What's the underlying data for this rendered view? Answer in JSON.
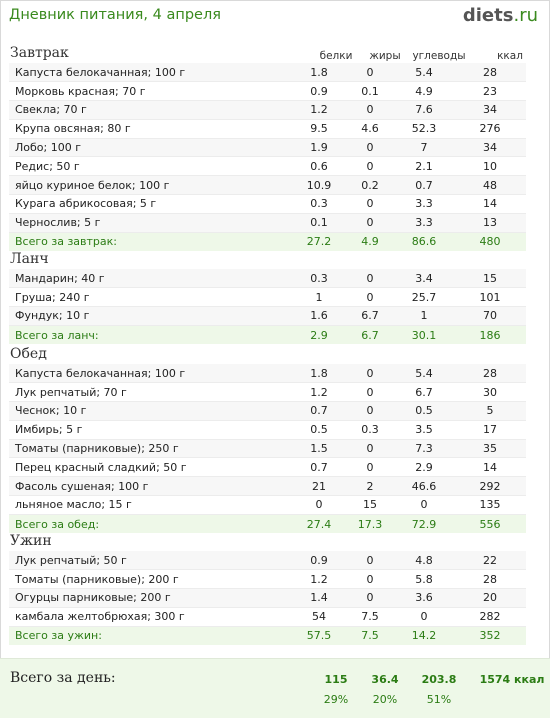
{
  "title": "Дневник питания, 4 апреля",
  "logo": {
    "part1": "diets",
    "part2": ".ru"
  },
  "columns": [
    "белки",
    "жиры",
    "углеводы",
    "ккал"
  ],
  "meals": [
    {
      "name": "Завтрак",
      "items": [
        {
          "name": "Капуста белокачанная; 100 г",
          "protein": "1.8",
          "fat": "0",
          "carbs": "5.4",
          "kcal": "28"
        },
        {
          "name": "Морковь красная; 70 г",
          "protein": "0.9",
          "fat": "0.1",
          "carbs": "4.9",
          "kcal": "23"
        },
        {
          "name": "Свекла; 70 г",
          "protein": "1.2",
          "fat": "0",
          "carbs": "7.6",
          "kcal": "34"
        },
        {
          "name": "Крупа овсяная; 80 г",
          "protein": "9.5",
          "fat": "4.6",
          "carbs": "52.3",
          "kcal": "276"
        },
        {
          "name": "Лобо; 100 г",
          "protein": "1.9",
          "fat": "0",
          "carbs": "7",
          "kcal": "34"
        },
        {
          "name": "Редис; 50 г",
          "protein": "0.6",
          "fat": "0",
          "carbs": "2.1",
          "kcal": "10"
        },
        {
          "name": "яйцо куриное белок; 100 г",
          "protein": "10.9",
          "fat": "0.2",
          "carbs": "0.7",
          "kcal": "48"
        },
        {
          "name": "Курага абрикосовая; 5 г",
          "protein": "0.3",
          "fat": "0",
          "carbs": "3.3",
          "kcal": "14"
        },
        {
          "name": "Чернослив; 5 г",
          "protein": "0.1",
          "fat": "0",
          "carbs": "3.3",
          "kcal": "13"
        }
      ],
      "total": {
        "name": "Всего за завтрак:",
        "protein": "27.2",
        "fat": "4.9",
        "carbs": "86.6",
        "kcal": "480"
      }
    },
    {
      "name": "Ланч",
      "items": [
        {
          "name": "Мандарин; 40 г",
          "protein": "0.3",
          "fat": "0",
          "carbs": "3.4",
          "kcal": "15"
        },
        {
          "name": "Груша; 240 г",
          "protein": "1",
          "fat": "0",
          "carbs": "25.7",
          "kcal": "101"
        },
        {
          "name": "Фундук; 10 г",
          "protein": "1.6",
          "fat": "6.7",
          "carbs": "1",
          "kcal": "70"
        }
      ],
      "total": {
        "name": "Всего за ланч:",
        "protein": "2.9",
        "fat": "6.7",
        "carbs": "30.1",
        "kcal": "186"
      }
    },
    {
      "name": "Обед",
      "items": [
        {
          "name": "Капуста белокачанная; 100 г",
          "protein": "1.8",
          "fat": "0",
          "carbs": "5.4",
          "kcal": "28"
        },
        {
          "name": "Лук репчатый; 70 г",
          "protein": "1.2",
          "fat": "0",
          "carbs": "6.7",
          "kcal": "30"
        },
        {
          "name": "Чеснок; 10 г",
          "protein": "0.7",
          "fat": "0",
          "carbs": "0.5",
          "kcal": "5"
        },
        {
          "name": "Имбирь; 5 г",
          "protein": "0.5",
          "fat": "0.3",
          "carbs": "3.5",
          "kcal": "17"
        },
        {
          "name": "Томаты (парниковые); 250 г",
          "protein": "1.5",
          "fat": "0",
          "carbs": "7.3",
          "kcal": "35"
        },
        {
          "name": "Перец красный сладкий; 50 г",
          "protein": "0.7",
          "fat": "0",
          "carbs": "2.9",
          "kcal": "14"
        },
        {
          "name": "Фасоль сушеная; 100 г",
          "protein": "21",
          "fat": "2",
          "carbs": "46.6",
          "kcal": "292"
        },
        {
          "name": "льняное масло; 15 г",
          "protein": "0",
          "fat": "15",
          "carbs": "0",
          "kcal": "135"
        }
      ],
      "total": {
        "name": "Всего за обед:",
        "protein": "27.4",
        "fat": "17.3",
        "carbs": "72.9",
        "kcal": "556"
      }
    },
    {
      "name": "Ужин",
      "items": [
        {
          "name": "Лук репчатый; 50 г",
          "protein": "0.9",
          "fat": "0",
          "carbs": "4.8",
          "kcal": "22"
        },
        {
          "name": "Томаты (парниковые); 200 г",
          "protein": "1.2",
          "fat": "0",
          "carbs": "5.8",
          "kcal": "28"
        },
        {
          "name": "Огурцы парниковые; 200 г",
          "protein": "1.4",
          "fat": "0",
          "carbs": "3.6",
          "kcal": "20"
        },
        {
          "name": "камбала желтобрюхая; 300 г",
          "protein": "54",
          "fat": "7.5",
          "carbs": "0",
          "kcal": "282"
        }
      ],
      "total": {
        "name": "Всего за ужин:",
        "protein": "57.5",
        "fat": "7.5",
        "carbs": "14.2",
        "kcal": "352"
      }
    }
  ],
  "day_total": {
    "label": "Всего за день:",
    "protein": "115",
    "fat": "36.4",
    "carbs": "203.8",
    "kcal": "1574 ккал",
    "protein_pct": "29%",
    "fat_pct": "20%",
    "carbs_pct": "51%"
  }
}
